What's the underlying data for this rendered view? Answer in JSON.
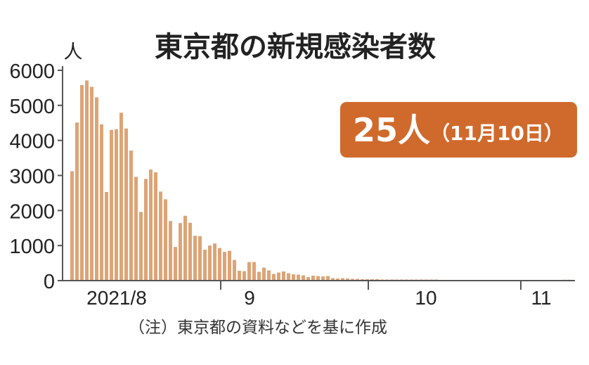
{
  "chart_data": {
    "type": "bar",
    "title": "東京都の新規感染者数",
    "unit_label": "人",
    "ylim": [
      0,
      6000
    ],
    "y_ticks": [
      0,
      1000,
      2000,
      3000,
      4000,
      5000,
      6000
    ],
    "x_labels": [
      {
        "label": "2021/8",
        "index": 0
      },
      {
        "label": "9",
        "index": 31
      },
      {
        "label": "10",
        "index": 61
      },
      {
        "label": "11",
        "index": 92
      }
    ],
    "series": [
      {
        "color": "#dda476",
        "values": [
          3120,
          4510,
          5580,
          5710,
          5530,
          5230,
          4460,
          2530,
          4300,
          4320,
          4790,
          4340,
          3710,
          2960,
          1960,
          2900,
          3170,
          3090,
          2540,
          2320,
          1700,
          960,
          1640,
          1850,
          1650,
          1280,
          1270,
          880,
          1000,
          1060,
          930,
          820,
          850,
          590,
          280,
          270,
          530,
          530,
          250,
          370,
          290,
          190,
          230,
          260,
          210,
          180,
          170,
          150,
          100,
          140,
          130,
          120,
          130,
          70,
          60,
          70,
          60,
          50,
          50,
          40,
          40,
          40,
          40,
          30,
          30,
          30,
          30,
          30,
          30,
          30,
          30,
          30,
          30,
          30,
          30,
          20,
          20,
          20,
          20,
          20,
          20,
          20,
          20,
          20,
          20,
          20,
          20,
          20,
          20,
          20,
          20,
          20,
          20,
          20,
          20,
          20,
          20,
          20,
          20,
          20,
          25,
          25
        ]
      }
    ]
  },
  "badge": {
    "value": "25人",
    "date": "（11月10日）",
    "color": "#d06a2c"
  },
  "note": "（注）東京都の資料などを基に作成"
}
